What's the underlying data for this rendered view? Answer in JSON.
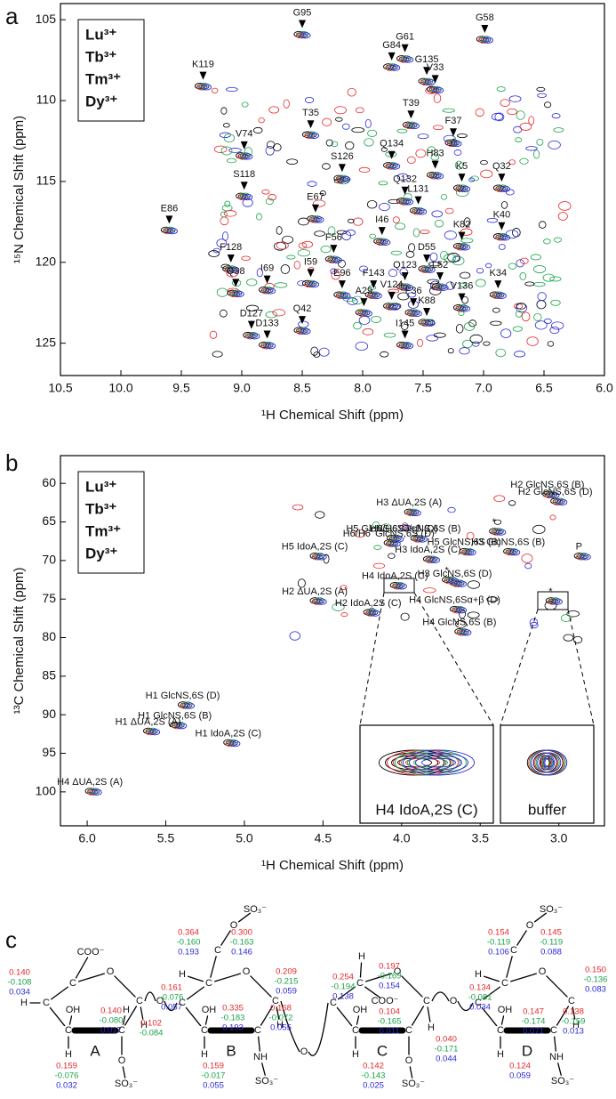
{
  "chart_data": [
    {
      "type": "scatter",
      "panel": "a",
      "xlabel": "¹H Chemical Shift (ppm)",
      "ylabel": "¹⁵N Chemical Shift (ppm)",
      "xlim": [
        10.5,
        6.0
      ],
      "ylim": [
        127,
        104
      ],
      "xticks": [
        10.5,
        {
          "value": 10,
          "label": "10.0"
        },
        9.5,
        {
          "value": 9,
          "label": "9.0"
        },
        8.5,
        {
          "value": 8,
          "label": "8.0"
        },
        7.5,
        {
          "value": 7,
          "label": "7.0"
        },
        6.5,
        {
          "value": 6,
          "label": "6.0"
        }
      ],
      "yticks": [
        105,
        110,
        115,
        120,
        125
      ],
      "series": [
        {
          "name": "Lu³⁺",
          "color": "#000000"
        },
        {
          "name": "Tb³⁺",
          "color": "#e8262a"
        },
        {
          "name": "Tm³⁺",
          "color": "#1aa34a"
        },
        {
          "name": "Dy³⁺",
          "color": "#2a2ad6"
        }
      ],
      "peaks": [
        {
          "label": "G58",
          "x": 6.99,
          "y": 106.2
        },
        {
          "label": "G61",
          "x": 7.65,
          "y": 107.4
        },
        {
          "label": "G84",
          "x": 7.76,
          "y": 107.9
        },
        {
          "label": "G135",
          "x": 7.47,
          "y": 108.8
        },
        {
          "label": "V33",
          "x": 7.4,
          "y": 109.3
        },
        {
          "label": "G95",
          "x": 8.5,
          "y": 105.9
        },
        {
          "label": "K119",
          "x": 9.32,
          "y": 109.1
        },
        {
          "label": "T35",
          "x": 8.43,
          "y": 112.1
        },
        {
          "label": "T39",
          "x": 7.6,
          "y": 111.5
        },
        {
          "label": "V74",
          "x": 8.98,
          "y": 113.4
        },
        {
          "label": "F37",
          "x": 7.25,
          "y": 112.6
        },
        {
          "label": "Q134",
          "x": 7.76,
          "y": 114.0
        },
        {
          "label": "S126",
          "x": 8.17,
          "y": 114.8
        },
        {
          "label": "H83",
          "x": 7.4,
          "y": 114.6
        },
        {
          "label": "K5",
          "x": 7.18,
          "y": 115.4
        },
        {
          "label": "Q32",
          "x": 6.85,
          "y": 115.4
        },
        {
          "label": "S118",
          "x": 8.98,
          "y": 115.9
        },
        {
          "label": "Q132",
          "x": 7.65,
          "y": 116.2
        },
        {
          "label": "L131",
          "x": 7.54,
          "y": 116.8
        },
        {
          "label": "E86",
          "x": 9.6,
          "y": 118.0
        },
        {
          "label": "E67",
          "x": 8.39,
          "y": 117.3
        },
        {
          "label": "K40",
          "x": 6.85,
          "y": 118.4
        },
        {
          "label": "I46",
          "x": 7.84,
          "y": 118.7
        },
        {
          "label": "K82",
          "x": 7.18,
          "y": 119.0
        },
        {
          "label": "F56",
          "x": 8.24,
          "y": 119.8
        },
        {
          "label": "F128",
          "x": 9.09,
          "y": 120.4
        },
        {
          "label": "D55",
          "x": 7.47,
          "y": 120.4
        },
        {
          "label": "I59",
          "x": 8.43,
          "y": 121.3
        },
        {
          "label": "Q123",
          "x": 7.65,
          "y": 121.5
        },
        {
          "label": "Q38",
          "x": 9.05,
          "y": 121.9
        },
        {
          "label": "E96",
          "x": 8.17,
          "y": 122.0
        },
        {
          "label": "F143",
          "x": 7.91,
          "y": 122.0
        },
        {
          "label": "L52",
          "x": 7.36,
          "y": 121.5
        },
        {
          "label": "I69",
          "x": 8.79,
          "y": 121.7
        },
        {
          "label": "V124",
          "x": 7.76,
          "y": 122.7
        },
        {
          "label": "K34",
          "x": 6.88,
          "y": 122.0
        },
        {
          "label": "A29",
          "x": 7.99,
          "y": 123.1
        },
        {
          "label": "F36",
          "x": 7.58,
          "y": 123.1
        },
        {
          "label": "V136",
          "x": 7.18,
          "y": 122.8
        },
        {
          "label": "Q42",
          "x": 8.5,
          "y": 124.2
        },
        {
          "label": "K88",
          "x": 7.47,
          "y": 123.7
        },
        {
          "label": "D127",
          "x": 8.92,
          "y": 124.5
        },
        {
          "label": "D133",
          "x": 8.79,
          "y": 125.1
        },
        {
          "label": "I145",
          "x": 7.65,
          "y": 125.1
        }
      ]
    },
    {
      "type": "scatter",
      "panel": "b",
      "xlabel": "¹H Chemical Shift (ppm)",
      "ylabel": "¹³C Chemical Shift (ppm)",
      "xlim": [
        6.17,
        2.71
      ],
      "ylim": [
        104.4,
        56.4
      ],
      "xticks": [
        {
          "value": 6,
          "label": "6.0"
        },
        5.5,
        {
          "value": 5,
          "label": "5.0"
        },
        4.5,
        {
          "value": 4,
          "label": "4.0"
        },
        3.5,
        {
          "value": 3,
          "label": "3.0"
        }
      ],
      "yticks": [
        60,
        65,
        70,
        75,
        80,
        85,
        90,
        95,
        100
      ],
      "series": [
        {
          "name": "Lu³⁺",
          "color": "#000000"
        },
        {
          "name": "Tb³⁺",
          "color": "#e8262a"
        },
        {
          "name": "Tm³⁺",
          "color": "#1aa34a"
        },
        {
          "name": "Dy³⁺",
          "color": "#2a2ad6"
        }
      ],
      "peaks": [
        {
          "label": "H2 GlcNS,6S (B)",
          "x": 3.05,
          "y": 61.4
        },
        {
          "label": "H2 GlcNS,6S (D)",
          "x": 3.0,
          "y": 62.3
        },
        {
          "label": "H3 ΔUA,2S (A)",
          "x": 3.93,
          "y": 63.7
        },
        {
          "label": "H6/H6' GlcNS,6S (B)",
          "x": 3.89,
          "y": 67.1
        },
        {
          "label": "H5 GlcNS,6Sα+β (D)",
          "x": 4.04,
          "y": 67.1
        },
        {
          "label": "H6/H6' GlcNS,6S (D)",
          "x": 4.06,
          "y": 67.7
        },
        {
          "label": "H5 GlcNS,6S (B)",
          "x": 3.58,
          "y": 68.8
        },
        {
          "label": "H3 GlcNS,6S (B)",
          "x": 3.3,
          "y": 68.8
        },
        {
          "label": "P",
          "x": 2.85,
          "y": 69.4
        },
        {
          "label": "H5 IdoA,2S (C)",
          "x": 4.53,
          "y": 69.4
        },
        {
          "label": "H3 IdoA,2S (C)",
          "x": 3.81,
          "y": 69.8
        },
        {
          "label": "H3 GlcNS,6S (D)",
          "x": 3.64,
          "y": 72.9
        },
        {
          "label": "H4 IdoA,2S (C)",
          "x": 4.02,
          "y": 73.2
        },
        {
          "label": "H4 GlcNS,6Sα+β (D)",
          "x": 3.64,
          "y": 76.3
        },
        {
          "label": "H4 GlcNS,6S (B)",
          "x": 3.61,
          "y": 79.2
        },
        {
          "label": "H2 ΔUA,2S (A)",
          "x": 4.53,
          "y": 75.2
        },
        {
          "label": "H2 IdoA,2S (C)",
          "x": 4.19,
          "y": 76.7
        },
        {
          "label": "*",
          "x": 3.03,
          "y": 75.2
        },
        {
          "label": "*",
          "x": 3.39,
          "y": 66.2
        },
        {
          "label": "*",
          "x": 3.69,
          "y": 72.5
        },
        {
          "label": "H1 GlcNS,6S (D)",
          "x": 5.37,
          "y": 88.7
        },
        {
          "label": "H1 GlcNS,6S (B)",
          "x": 5.42,
          "y": 91.3
        },
        {
          "label": "H1 ΔUA,2S (A)",
          "x": 5.59,
          "y": 92.1
        },
        {
          "label": "H1 IdoA,2S (C)",
          "x": 5.08,
          "y": 93.6
        },
        {
          "label": "H4 ΔUA,2S (A)",
          "x": 5.96,
          "y": 99.9
        }
      ],
      "insets": [
        "H4 IdoA,2S (C)",
        "buffer"
      ]
    }
  ],
  "panel_labels": [
    "a",
    "b",
    "c"
  ],
  "panel_c": {
    "rings": [
      {
        "letter": "A",
        "atoms": [
          "O",
          "C",
          "C",
          "C",
          "C",
          "C",
          "COO⁻",
          "H",
          "OH",
          "H",
          "H",
          "H",
          "O",
          "SO₃⁻"
        ]
      },
      {
        "letter": "B",
        "atoms": [
          "O",
          "C",
          "C",
          "C",
          "C",
          "C",
          "C",
          "O",
          "SO₃⁻",
          "H",
          "OH",
          "H",
          "NH",
          "SO₃⁻",
          "H"
        ]
      },
      {
        "letter": "C",
        "atoms": [
          "O",
          "C",
          "C",
          "C",
          "C",
          "C",
          "COO⁻",
          "H",
          "OH",
          "H",
          "O",
          "SO₃⁻",
          "H"
        ]
      },
      {
        "letter": "D",
        "atoms": [
          "O",
          "C",
          "C",
          "C",
          "C",
          "C",
          "C",
          "O",
          "SO₃⁻",
          "H",
          "OH",
          "H",
          "NH",
          "SO₃⁻",
          "H"
        ]
      }
    ],
    "links": [
      "O",
      "O",
      "O"
    ],
    "shifts": [
      {
        "values": [
          "0.140",
          "-0.108",
          "0.034"
        ],
        "colors": [
          "#e8262a",
          "#1aa34a",
          "#2a2ad6"
        ]
      },
      {
        "values": [
          "0.140",
          "-0.080",
          "0.017"
        ],
        "colors": [
          "#e8262a",
          "#1aa34a",
          "#2a2ad6"
        ]
      },
      {
        "values": [
          "0.159",
          "-0.076",
          "0.032"
        ],
        "colors": [
          "#e8262a",
          "#1aa34a",
          "#2a2ad6"
        ]
      },
      {
        "values": [
          "0.102",
          "-0.084"
        ],
        "colors": [
          "#e8262a",
          "#1aa34a"
        ]
      },
      {
        "values": [
          "0.364",
          "-0.160",
          "0.193"
        ],
        "colors": [
          "#e8262a",
          "#1aa34a",
          "#2a2ad6"
        ]
      },
      {
        "values": [
          "0.300",
          "-0.163",
          "0.146"
        ],
        "colors": [
          "#e8262a",
          "#1aa34a",
          "#2a2ad6"
        ]
      },
      {
        "values": [
          "0.161",
          "-0.076",
          "0.057"
        ],
        "colors": [
          "#e8262a",
          "#1aa34a",
          "#2a2ad6"
        ]
      },
      {
        "values": [
          "0.335",
          "-0.183",
          "0.193"
        ],
        "colors": [
          "#e8262a",
          "#1aa34a",
          "#2a2ad6"
        ]
      },
      {
        "values": [
          "0.168",
          "-0.072",
          "0.055"
        ],
        "colors": [
          "#e8262a",
          "#1aa34a",
          "#2a2ad6"
        ]
      },
      {
        "values": [
          "0.159",
          "-0.017",
          "0.055"
        ],
        "colors": [
          "#e8262a",
          "#1aa34a",
          "#2a2ad6"
        ]
      },
      {
        "values": [
          "0.209",
          "-0.215",
          "0.059"
        ],
        "colors": [
          "#e8262a",
          "#1aa34a",
          "#2a2ad6"
        ]
      },
      {
        "values": [
          "0.254",
          "-0.194",
          "0.138"
        ],
        "colors": [
          "#e8262a",
          "#1aa34a",
          "#2a2ad6"
        ]
      },
      {
        "values": [
          "0.197",
          "-0.169",
          "0.154"
        ],
        "colors": [
          "#e8262a",
          "#1aa34a",
          "#2a2ad6"
        ]
      },
      {
        "values": [
          "0.104",
          "-0.165",
          "0.011"
        ],
        "colors": [
          "#e8262a",
          "#1aa34a",
          "#2a2ad6"
        ]
      },
      {
        "values": [
          "0.040",
          "-0.171",
          "0.044"
        ],
        "colors": [
          "#e8262a",
          "#1aa34a",
          "#2a2ad6"
        ]
      },
      {
        "values": [
          "0.142",
          "-0.143",
          "0.025"
        ],
        "colors": [
          "#e8262a",
          "#1aa34a",
          "#2a2ad6"
        ]
      },
      {
        "values": [
          "0.154",
          "-0.119",
          "0.106"
        ],
        "colors": [
          "#e8262a",
          "#1aa34a",
          "#2a2ad6"
        ]
      },
      {
        "values": [
          "0.145",
          "-0.119",
          "0.088"
        ],
        "colors": [
          "#e8262a",
          "#1aa34a",
          "#2a2ad6"
        ]
      },
      {
        "values": [
          "0.134",
          "-0.081",
          "0.034"
        ],
        "colors": [
          "#e8262a",
          "#1aa34a",
          "#2a2ad6"
        ]
      },
      {
        "values": [
          "0.147",
          "-0.174",
          "0.071"
        ],
        "colors": [
          "#e8262a",
          "#1aa34a",
          "#2a2ad6"
        ]
      },
      {
        "values": [
          "0.138",
          "-0.159",
          "0.013"
        ],
        "colors": [
          "#e8262a",
          "#1aa34a",
          "#2a2ad6"
        ]
      },
      {
        "values": [
          "0.150",
          "-0.136",
          "0.083"
        ],
        "colors": [
          "#e8262a",
          "#1aa34a",
          "#2a2ad6"
        ]
      },
      {
        "values": [
          "0.124",
          "0.059"
        ],
        "colors": [
          "#e8262a",
          "#2a2ad6"
        ]
      }
    ]
  }
}
